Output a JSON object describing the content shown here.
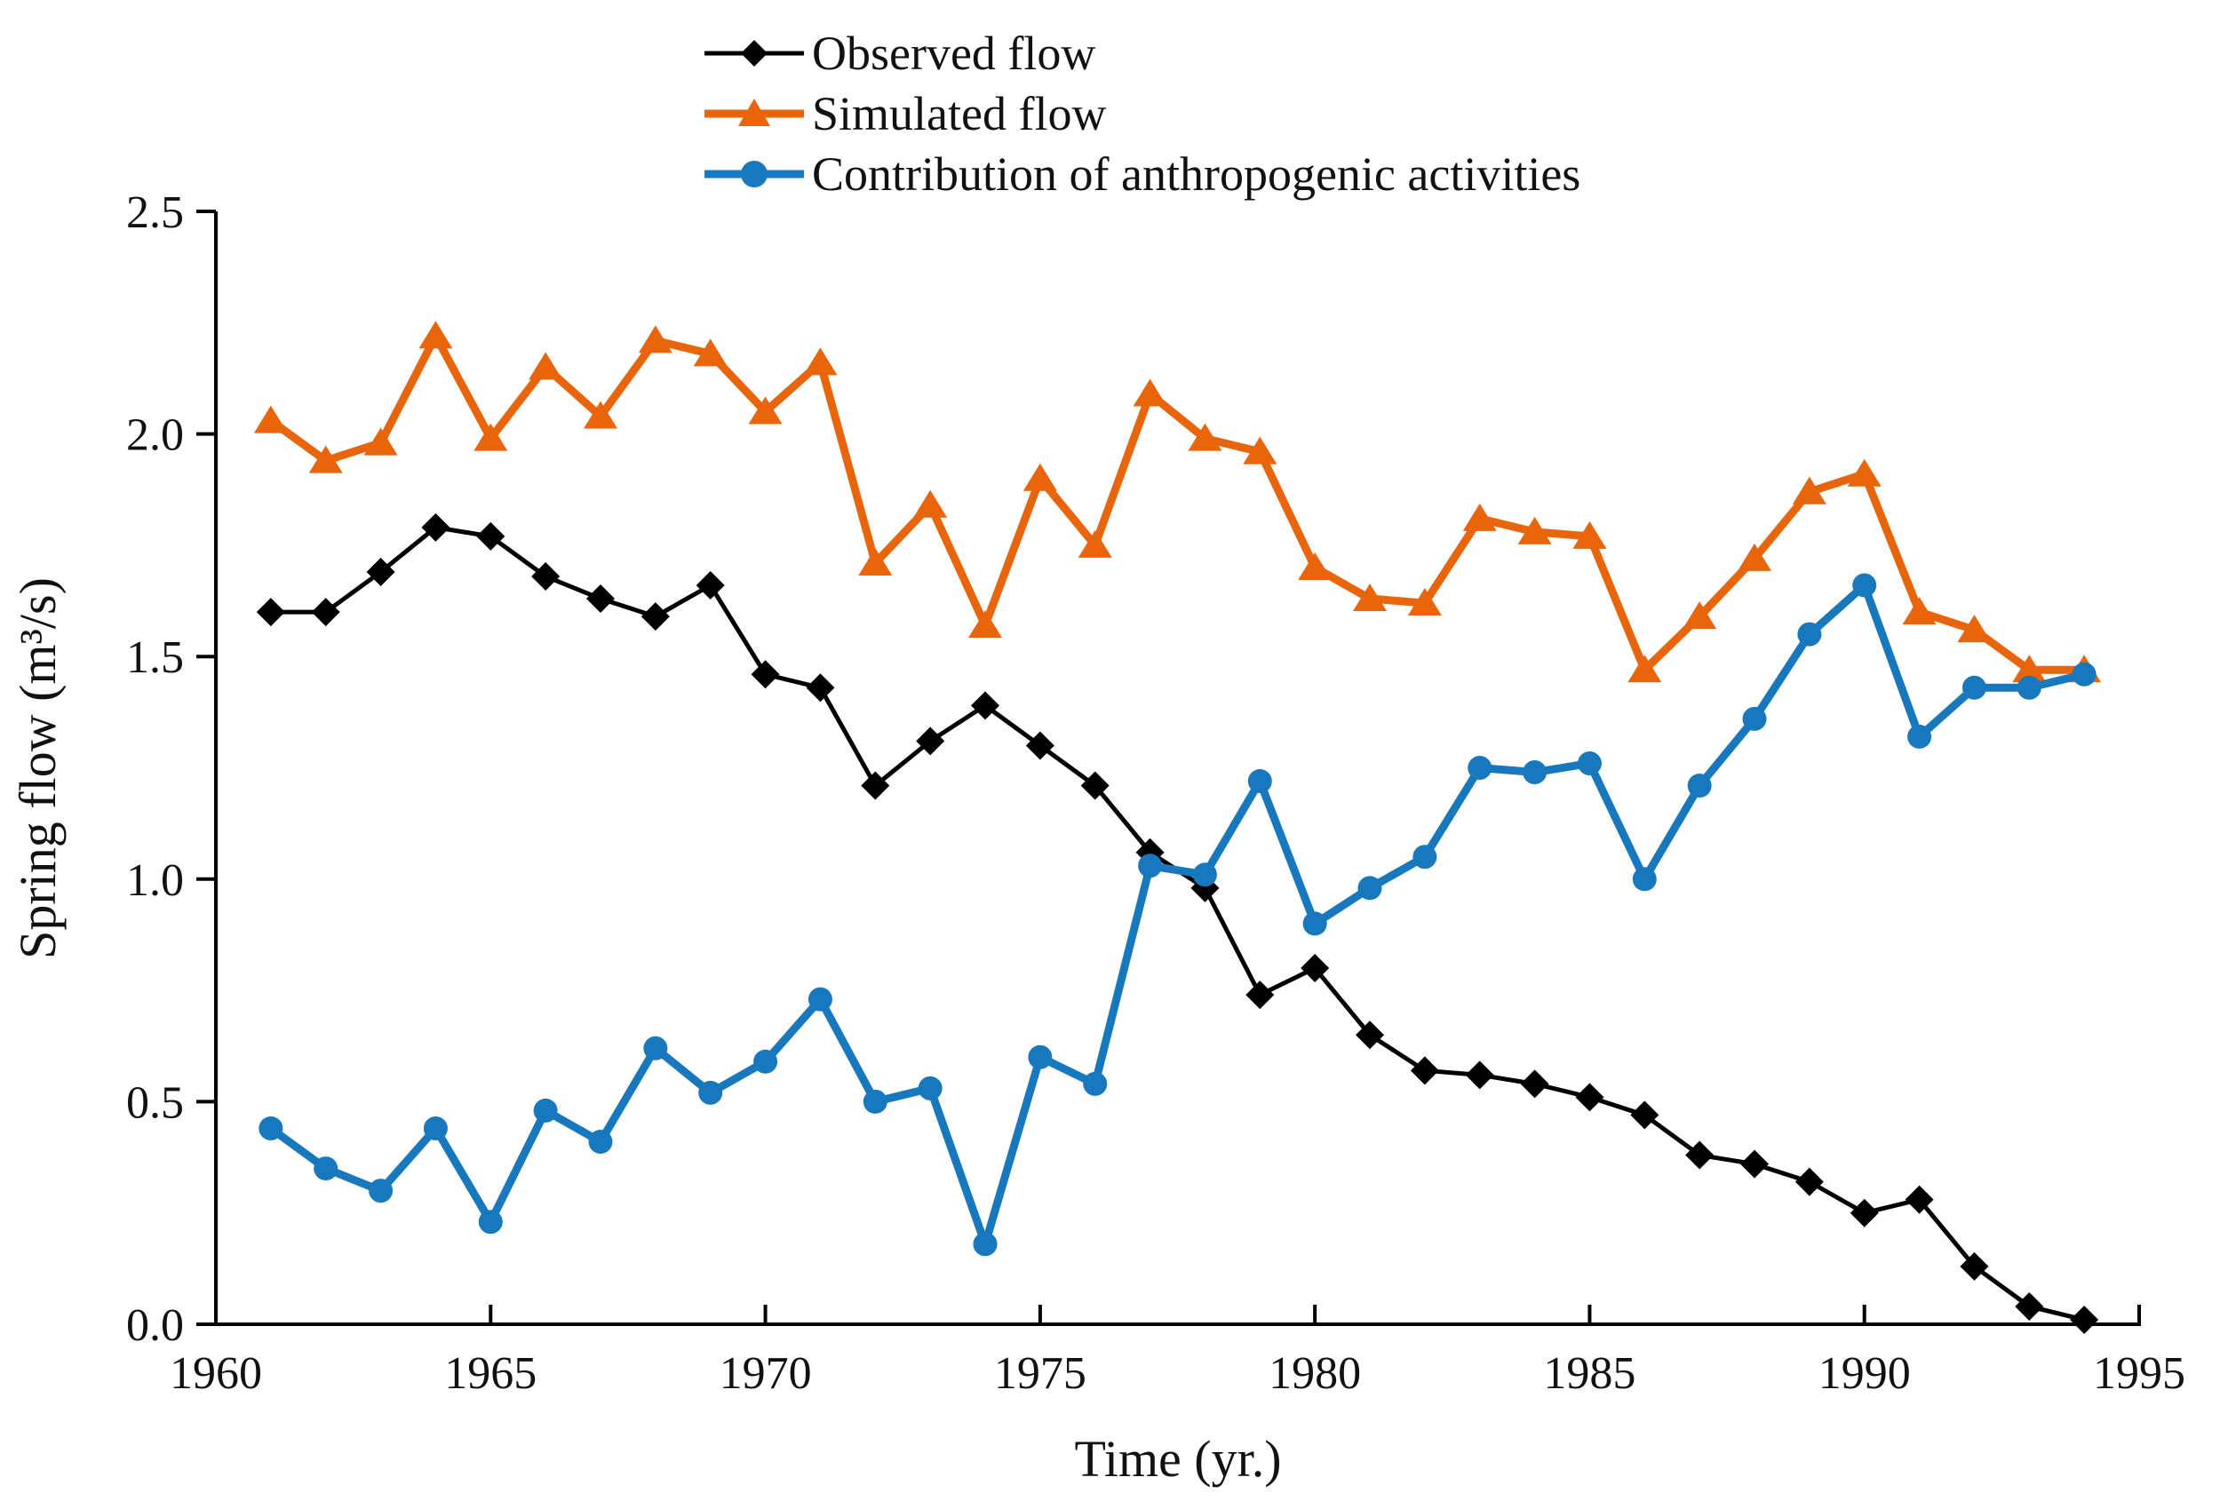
{
  "chart_data": {
    "type": "line",
    "title": "",
    "xlabel": "Time (yr.)",
    "ylabel": "Spring flow (m³/s)",
    "xlim": [
      1960,
      1995
    ],
    "ylim": [
      0.0,
      2.5
    ],
    "x_ticks": [
      1960,
      1965,
      1970,
      1975,
      1980,
      1985,
      1990,
      1995
    ],
    "y_ticks": [
      "0.0",
      "0.5",
      "1.0",
      "1.5",
      "2.0",
      "2.5"
    ],
    "grid": false,
    "legend_position": "top-left-inside",
    "x": [
      1961,
      1962,
      1963,
      1964,
      1965,
      1966,
      1967,
      1968,
      1969,
      1970,
      1971,
      1972,
      1973,
      1974,
      1975,
      1976,
      1977,
      1978,
      1979,
      1980,
      1981,
      1982,
      1983,
      1984,
      1985,
      1986,
      1987,
      1988,
      1989,
      1990,
      1991,
      1992,
      1993,
      1994
    ],
    "series": [
      {
        "name": "Observed flow",
        "marker": "diamond",
        "color": "#000000",
        "line_width": 5,
        "values": [
          1.6,
          1.6,
          1.69,
          1.79,
          1.77,
          1.68,
          1.63,
          1.59,
          1.66,
          1.46,
          1.43,
          1.21,
          1.31,
          1.39,
          1.3,
          1.21,
          1.06,
          0.98,
          0.74,
          0.8,
          0.65,
          0.57,
          0.56,
          0.54,
          0.51,
          0.47,
          0.38,
          0.36,
          0.32,
          0.25,
          0.28,
          0.13,
          0.04,
          0.01
        ]
      },
      {
        "name": "Simulated flow",
        "marker": "triangle",
        "color": "#E8650C",
        "line_width": 9,
        "values": [
          2.03,
          1.94,
          1.98,
          2.22,
          1.99,
          2.15,
          2.04,
          2.21,
          2.18,
          2.05,
          2.16,
          1.71,
          1.84,
          1.57,
          1.9,
          1.75,
          2.09,
          1.99,
          1.96,
          1.7,
          1.63,
          1.62,
          1.81,
          1.78,
          1.77,
          1.47,
          1.59,
          1.72,
          1.87,
          1.91,
          1.6,
          1.56,
          1.47,
          1.47
        ]
      },
      {
        "name": "Contribution of anthropogenic activities",
        "marker": "circle",
        "color": "#1878BE",
        "line_width": 9,
        "values": [
          0.44,
          0.35,
          0.3,
          0.44,
          0.23,
          0.48,
          0.41,
          0.62,
          0.52,
          0.59,
          0.73,
          0.5,
          0.53,
          0.18,
          0.6,
          0.54,
          1.03,
          1.01,
          1.22,
          0.9,
          0.98,
          1.05,
          1.25,
          1.24,
          1.26,
          1.0,
          1.21,
          1.36,
          1.55,
          1.66,
          1.32,
          1.43,
          1.43,
          1.46
        ]
      }
    ]
  }
}
